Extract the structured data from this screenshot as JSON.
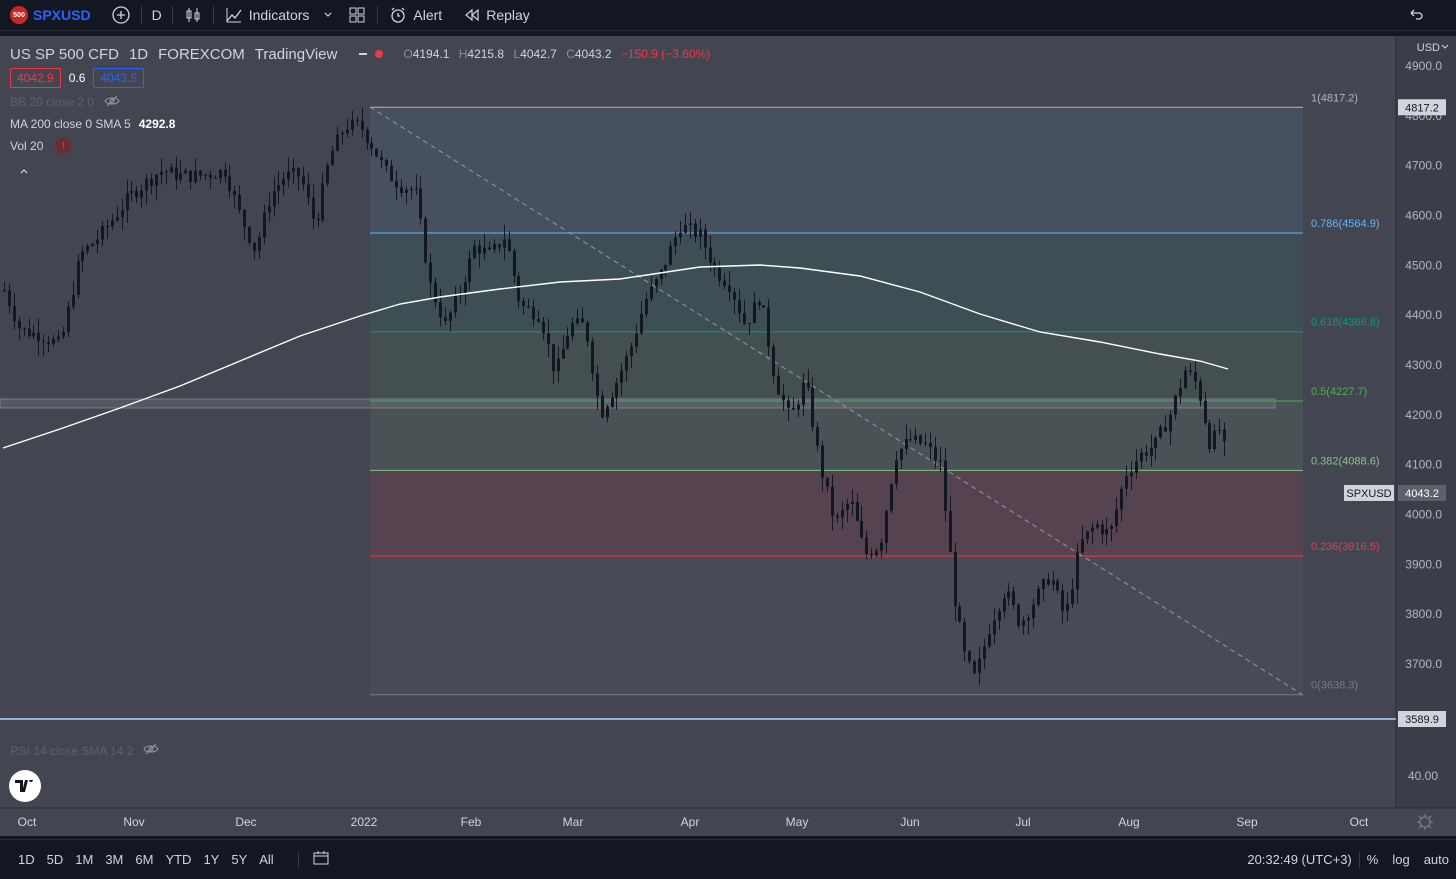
{
  "topbar": {
    "symbol_badge": "500",
    "symbol": "SPXUSD",
    "interval": "D",
    "indicators_label": "Indicators",
    "alert_label": "Alert",
    "replay_label": "Replay"
  },
  "legend": {
    "instrument": "US SP 500 CFD",
    "interval": "1D",
    "exchange": "FOREXCOM",
    "source": "TradingView",
    "ohlc": {
      "o_label": "O",
      "o": "4194.1",
      "h_label": "H",
      "h": "4215.8",
      "l_label": "L",
      "l": "4042.7",
      "c_label": "C",
      "c": "4043.2",
      "change": "−150.9 (−3.60%)"
    },
    "bid": "4042.9",
    "spread": "0.6",
    "ask": "4043.5",
    "bb": "BB 20 close 2 0",
    "ma_label": "MA 200 close 0 SMA 5",
    "ma_value": "4292.8",
    "vol_label": "Vol 20",
    "vol_warn": "!"
  },
  "rsi_label": "RSI 14 close SMA 14 2",
  "price_axis": {
    "currency": "USD",
    "ticks": [
      "4900.0",
      "4800.0",
      "4700.0",
      "4600.0",
      "4500.0",
      "4400.0",
      "4300.0",
      "4200.0",
      "4100.0",
      "4000.0",
      "3900.0",
      "3800.0",
      "3700.0"
    ],
    "tag_high": "4817.2",
    "tag_symbol": "SPXUSD",
    "tag_last": "4043.2",
    "tag_low_line": "3589.9",
    "rsi_tick": "40.00"
  },
  "fib_levels": [
    {
      "label": "1(4817.2)",
      "value": 4817.2,
      "color": "#b2b5be"
    },
    {
      "label": "0.786(4564.9)",
      "value": 4564.9,
      "color": "#64b5f6"
    },
    {
      "label": "0.618(4366.8)",
      "value": 4366.8,
      "color": "#089981"
    },
    {
      "label": "0.5(4227.7)",
      "value": 4227.7,
      "color": "#4caf50"
    },
    {
      "label": "0.382(4088.6)",
      "value": 4088.6,
      "color": "#81c784"
    },
    {
      "label": "0.236(3916.5)",
      "value": 3916.5,
      "color": "#f23645"
    },
    {
      "label": "0(3638.3)",
      "value": 3638.3,
      "color": "#787b86"
    }
  ],
  "time_axis": [
    "Oct",
    "Nov",
    "Dec",
    "2022",
    "Feb",
    "Mar",
    "Apr",
    "May",
    "Jun",
    "Jul",
    "Aug",
    "Sep",
    "Oct"
  ],
  "bottombar": {
    "ranges": [
      "1D",
      "5D",
      "1M",
      "3M",
      "6M",
      "YTD",
      "1Y",
      "5Y",
      "All"
    ],
    "clock": "20:32:49 (UTC+3)",
    "percent": "%",
    "log": "log",
    "auto": "auto"
  },
  "colors": {
    "background": "#131722",
    "chart_bg": "#434651",
    "candle": "#131722",
    "ma_line": "#ffffff",
    "accent": "#2962ff",
    "negative": "#f23645"
  }
}
